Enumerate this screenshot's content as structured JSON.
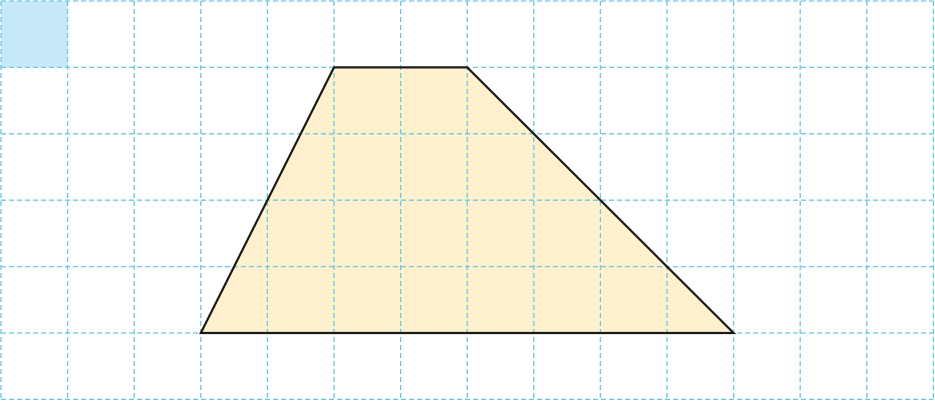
{
  "grid": {
    "columns": 14,
    "rows": 6,
    "line_color": "#6cc7e0",
    "unit_square": {
      "col": 0,
      "row": 0,
      "fill": "#c5e9f8"
    }
  },
  "trapezoid": {
    "vertices": [
      [
        3,
        5
      ],
      [
        5,
        1
      ],
      [
        7,
        1
      ],
      [
        11,
        5
      ]
    ],
    "fill": "#fff1cd",
    "stroke": "#1a1a1a"
  }
}
